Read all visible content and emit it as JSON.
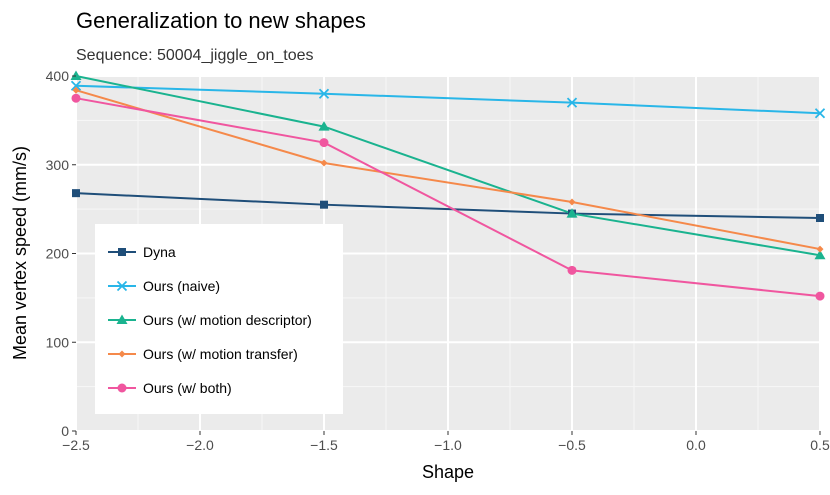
{
  "chart_data": {
    "type": "line",
    "title": "Generalization to new shapes",
    "subtitle": "Sequence: 50004_jiggle_on_toes",
    "xlabel": "Shape",
    "ylabel": "Mean vertex speed (mm/s)",
    "xlim": [
      -2.5,
      0.5
    ],
    "ylim": [
      0,
      400
    ],
    "x": [
      -2.5,
      -1.5,
      -0.5,
      0.5
    ],
    "x_ticks": [
      -2.5,
      -2.0,
      -1.5,
      -1.0,
      -0.5,
      0.0,
      0.5
    ],
    "x_tick_labels": [
      "−2.5",
      "−2.0",
      "−1.5",
      "−1.0",
      "−0.5",
      "0.0",
      "0.5"
    ],
    "y_ticks": [
      0,
      100,
      200,
      300,
      400
    ],
    "y_tick_labels": [
      "0",
      "100",
      "200",
      "300",
      "400"
    ],
    "grid": true,
    "legend_position": "bottom-left",
    "series": [
      {
        "name": "Dyna",
        "values": [
          268,
          255,
          245,
          240
        ],
        "color": "#1f4e79",
        "marker": "square"
      },
      {
        "name": "Ours (naive)",
        "values": [
          389,
          380,
          370,
          358
        ],
        "color": "#29b6e8",
        "marker": "x"
      },
      {
        "name": "Ours (w/ motion descriptor)",
        "values": [
          400,
          343,
          245,
          198
        ],
        "color": "#1ab38f",
        "marker": "triangle"
      },
      {
        "name": "Ours (w/ motion transfer)",
        "values": [
          384,
          302,
          258,
          205
        ],
        "color": "#f5894a",
        "marker": "diamond"
      },
      {
        "name": "Ours (w/ both)",
        "values": [
          375,
          325,
          181,
          152
        ],
        "color": "#f0569f",
        "marker": "circle"
      }
    ]
  }
}
